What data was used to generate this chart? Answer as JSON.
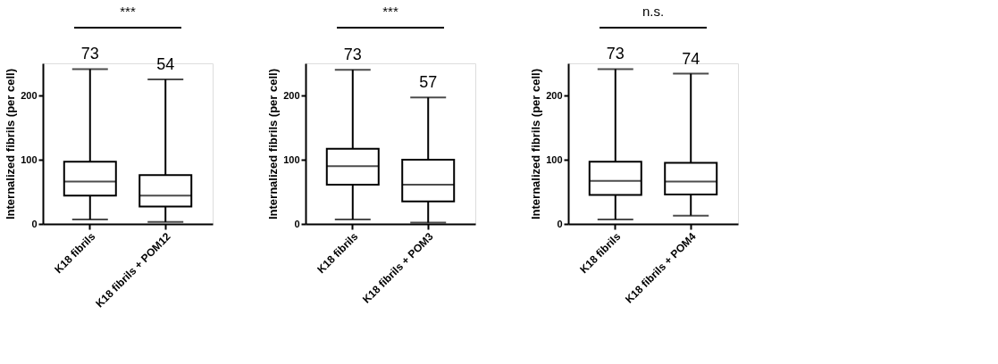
{
  "chart_data": [
    {
      "type": "box",
      "categories": [
        "K18 fibrils",
        "K18 fibrils + POM12"
      ],
      "ylabel": "Internalized fibrils (per cell)",
      "color": "#000000",
      "ylim": [
        0,
        250
      ],
      "yticks": [
        0,
        100,
        200
      ],
      "grid": false,
      "boxes": [
        {
          "low": 7,
          "q1": 44,
          "median": 66,
          "q3": 97,
          "high": 241
        },
        {
          "low": 3,
          "q1": 27,
          "median": 44,
          "q3": 76,
          "high": 225
        }
      ],
      "annotations": [
        "***",
        "73",
        "54"
      ]
    },
    {
      "type": "box",
      "categories": [
        "K18 fibrils",
        "K18 fibrils + POM3"
      ],
      "ylabel": "Internalized fibrils (per cell)",
      "color": "#000000",
      "ylim": [
        0,
        250
      ],
      "yticks": [
        0,
        100,
        200
      ],
      "grid": false,
      "boxes": [
        {
          "low": 7,
          "q1": 61,
          "median": 90,
          "q3": 117,
          "high": 240
        },
        {
          "low": 2,
          "q1": 35,
          "median": 61,
          "q3": 100,
          "high": 197
        }
      ],
      "annotations": [
        "***",
        "73",
        "57"
      ]
    },
    {
      "type": "box",
      "categories": [
        "K18 fibrils",
        "K18 fibrils + POM4"
      ],
      "ylabel": "Internalized fibrils (per cell)",
      "color": "#000000",
      "ylim": [
        0,
        250
      ],
      "yticks": [
        0,
        100,
        200
      ],
      "grid": false,
      "boxes": [
        {
          "low": 7,
          "q1": 45,
          "median": 67,
          "q3": 97,
          "high": 241
        },
        {
          "low": 13,
          "q1": 46,
          "median": 66,
          "q3": 95,
          "high": 234
        }
      ],
      "annotations": [
        "n.s.",
        "73",
        "74"
      ]
    }
  ]
}
